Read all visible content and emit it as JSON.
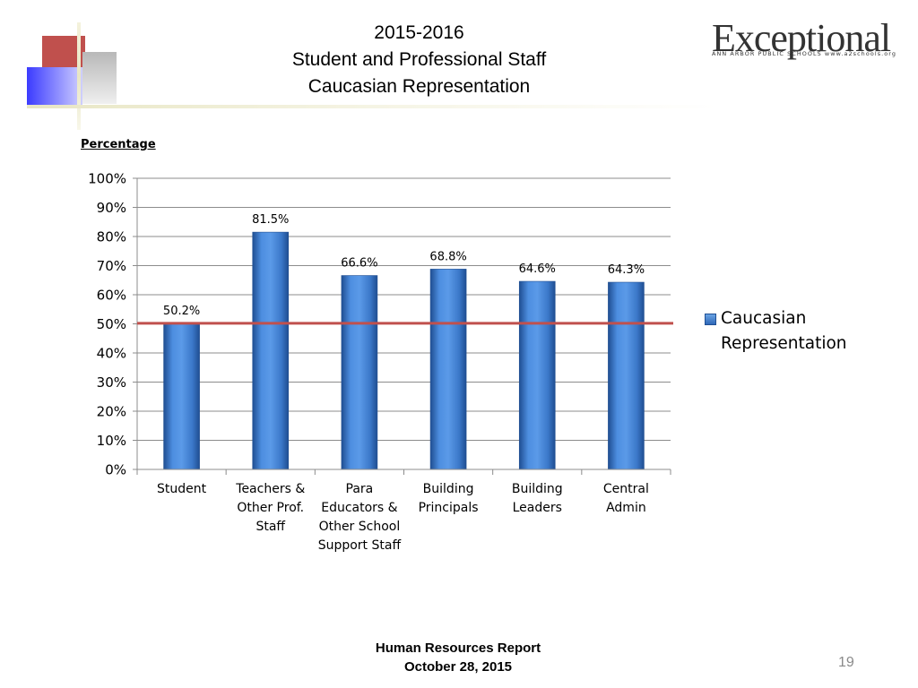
{
  "slide": {
    "title_lines": [
      "2015-2016",
      "Student and Professional Staff",
      "Caucasian Representation"
    ],
    "logo": {
      "word": "Exceptional",
      "tagline": "ANN ARBOR PUBLIC SCHOOLS www.a2schools.org"
    },
    "axis_caption": "Percentage",
    "footer_lines": [
      "Human Resources  Report",
      "October 28, 2015"
    ],
    "page_number": "19"
  },
  "colors": {
    "bar": "#3b78c9",
    "bar_dark": "#214f92",
    "reference_line": "#c0504d",
    "grid": "#8c8c8c"
  },
  "chart_data": {
    "type": "bar",
    "categories": [
      "Student",
      "Teachers & Other Prof. Staff",
      "Para Educators & Other School Support Staff",
      "Building Principals",
      "Building Leaders",
      "Central Admin"
    ],
    "category_label_lines": [
      [
        "Student"
      ],
      [
        "Teachers &",
        "Other Prof.",
        "Staff"
      ],
      [
        "Para",
        "Educators &",
        "Other School",
        "Support Staff"
      ],
      [
        "Building",
        "Principals"
      ],
      [
        "Building",
        "Leaders"
      ],
      [
        "Central",
        "Admin"
      ]
    ],
    "series": [
      {
        "name": "Caucasian Representation",
        "values": [
          50.2,
          81.5,
          66.6,
          68.8,
          64.6,
          64.3
        ]
      }
    ],
    "data_labels": [
      "50.2%",
      "81.5%",
      "66.6%",
      "68.8%",
      "64.6%",
      "64.3%"
    ],
    "reference_line": {
      "value": 50.2
    },
    "ylim": [
      0,
      100
    ],
    "yticks": [
      0,
      10,
      20,
      30,
      40,
      50,
      60,
      70,
      80,
      90,
      100
    ],
    "ytick_labels": [
      "0%",
      "10%",
      "20%",
      "30%",
      "40%",
      "50%",
      "60%",
      "70%",
      "80%",
      "90%",
      "100%"
    ],
    "ylabel": "Percentage",
    "xlabel": "",
    "grid": true,
    "legend": {
      "position": "right",
      "entries": [
        "Caucasian Representation"
      ]
    }
  }
}
